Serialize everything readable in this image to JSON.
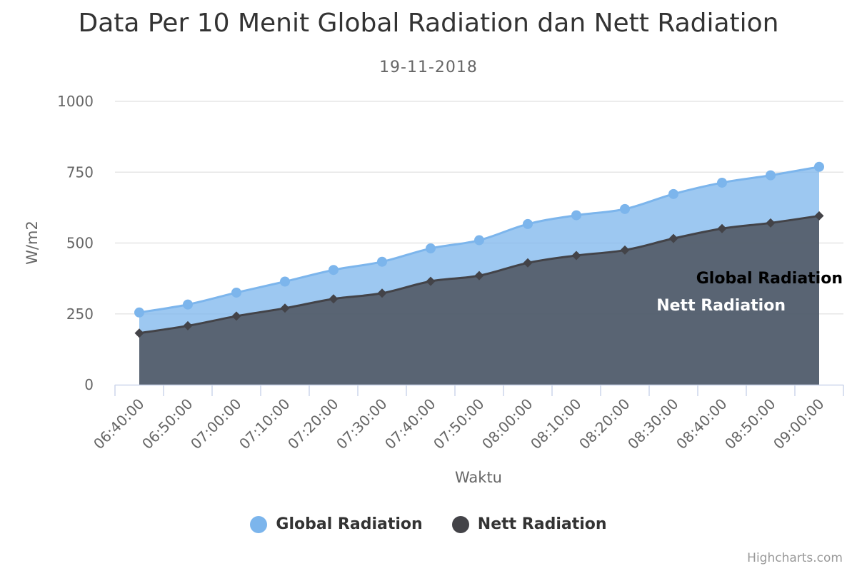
{
  "chart_data": {
    "type": "area",
    "title": "Data Per 10 Menit Global Radiation dan Nett Radiation",
    "subtitle": "19-11-2018",
    "xlabel": "Waktu",
    "ylabel": "W/m2",
    "ylim": [
      0,
      1000
    ],
    "yticks": [
      "0",
      "250",
      "500",
      "750",
      "1000"
    ],
    "categories": [
      "06:40:00",
      "06:50:00",
      "07:00:00",
      "07:10:00",
      "07:20:00",
      "07:30:00",
      "07:40:00",
      "07:50:00",
      "08:00:00",
      "08:10:00",
      "08:20:00",
      "08:30:00",
      "08:40:00",
      "08:50:00",
      "09:00:00"
    ],
    "series": [
      {
        "name": "Global Radiation",
        "color": "#7cb5ec",
        "values": [
          255,
          283,
          325,
          364,
          405,
          434,
          481,
          510,
          567,
          598,
          620,
          673,
          713,
          739,
          769
        ]
      },
      {
        "name": "Nett Radiation",
        "color": "#434348",
        "values": [
          182,
          208,
          242,
          270,
          303,
          323,
          365,
          385,
          430,
          456,
          475,
          516,
          551,
          571,
          596
        ]
      }
    ],
    "grid": true,
    "legend": "bottom-center"
  },
  "credits": "Highcharts.com"
}
